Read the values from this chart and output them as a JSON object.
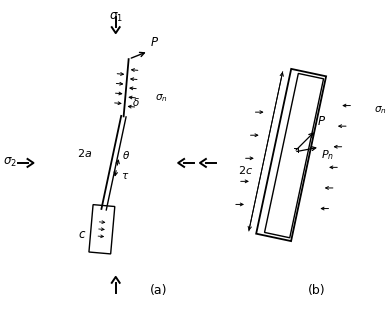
{
  "bg_color": "#ffffff",
  "line_color": "#000000",
  "fig_width": 3.91,
  "fig_height": 3.09,
  "dpi": 100
}
